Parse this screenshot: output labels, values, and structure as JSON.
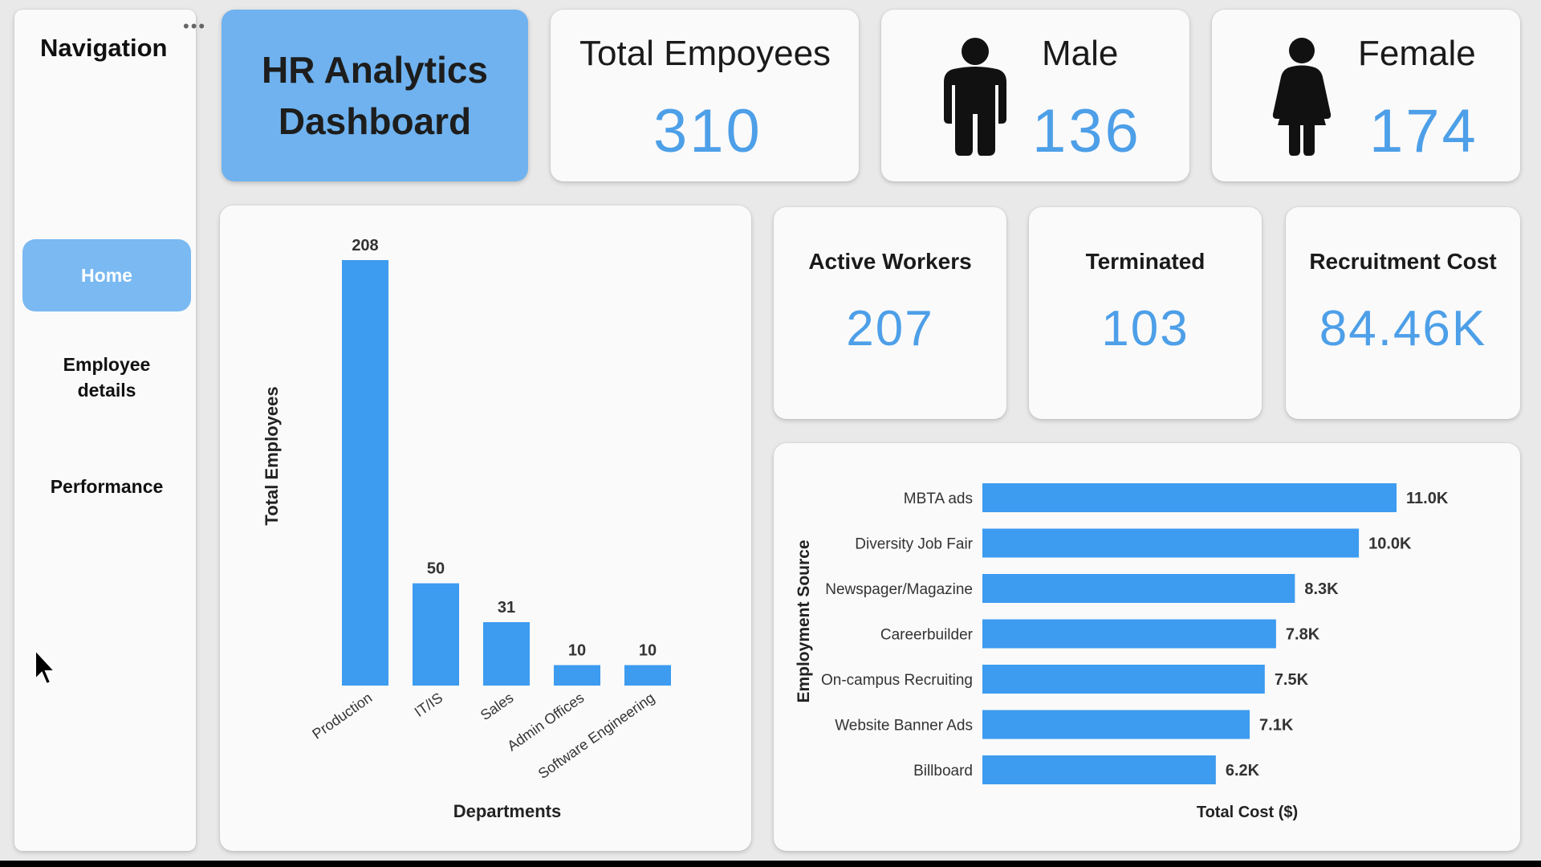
{
  "navigation": {
    "title": "Navigation",
    "more": "•••",
    "items": [
      {
        "label": "Home",
        "active": true
      },
      {
        "label": "Employee details",
        "active": false
      },
      {
        "label": "Performance",
        "active": false
      }
    ]
  },
  "dashboard": {
    "title": "HR Analytics Dashboard"
  },
  "kpis": {
    "total_label": "Total Empoyees",
    "total_value": "310",
    "male_label": "Male",
    "male_value": "136",
    "female_label": "Female",
    "female_value": "174",
    "active_label": "Active Workers",
    "active_value": "207",
    "terminated_label": "Terminated",
    "terminated_value": "103",
    "recruitment_label": "Recruitment Cost",
    "recruitment_value": "84.46K"
  },
  "colors": {
    "accent": "#4d9fe8",
    "bar": "#3d9bf0",
    "title_tile": "#6fb2ef",
    "nav_active": "#7ab9f2"
  },
  "icons": {
    "male": "male-person-icon",
    "female": "female-person-icon",
    "cursor": "mouse-pointer-icon"
  },
  "chart_data": [
    {
      "type": "bar",
      "orientation": "vertical",
      "xlabel": "Departments",
      "ylabel": "Total Employees",
      "categories": [
        "Production",
        "IT/IS",
        "Sales",
        "Admin Offices",
        "Software Engineering"
      ],
      "values": [
        208,
        50,
        31,
        10,
        10
      ],
      "data_labels": [
        "208",
        "50",
        "31",
        "10",
        "10"
      ],
      "ylim": [
        0,
        208
      ],
      "grid": false
    },
    {
      "type": "bar",
      "orientation": "horizontal",
      "xlabel": "Total Cost ($)",
      "ylabel": "Employment Source",
      "categories": [
        "MBTA ads",
        "Diversity Job Fair",
        "Newspager/Magazine",
        "Careerbuilder",
        "On-campus Recruiting",
        "Website Banner Ads",
        "Billboard"
      ],
      "values": [
        11000,
        10000,
        8300,
        7800,
        7500,
        7100,
        6200
      ],
      "data_labels": [
        "11.0K",
        "10.0K",
        "8.3K",
        "7.8K",
        "7.5K",
        "7.1K",
        "6.2K"
      ],
      "xlim": [
        0,
        11000
      ],
      "grid": false
    }
  ]
}
